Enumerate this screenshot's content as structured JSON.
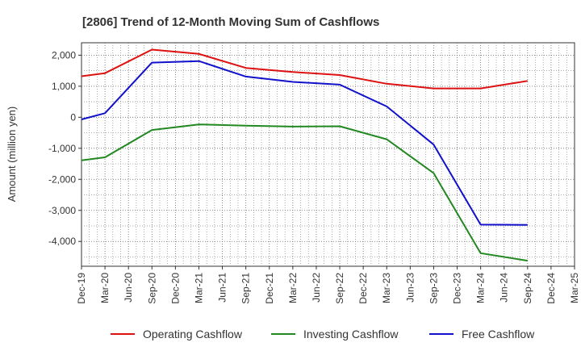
{
  "chart_data": {
    "type": "line",
    "title": "[2806]  Trend of 12-Month Moving Sum of Cashflows",
    "ylabel": "Amount (million yen)",
    "xlabel": "",
    "ylim": [
      -4800,
      2400
    ],
    "yticks": [
      2000,
      1000,
      0,
      -1000,
      -2000,
      -3000,
      -4000
    ],
    "ytick_labels": [
      "2,000",
      "1,000",
      "0",
      "-1,000",
      "-2,000",
      "-3,000",
      "-4,000"
    ],
    "categories": [
      "Dec-19",
      "Mar-20",
      "Jun-20",
      "Sep-20",
      "Dec-20",
      "Mar-21",
      "Jun-21",
      "Sep-21",
      "Dec-21",
      "Mar-22",
      "Jun-22",
      "Sep-22",
      "Dec-22",
      "Mar-23",
      "Jun-23",
      "Sep-23",
      "Dec-23",
      "Mar-24",
      "Jun-24",
      "Sep-24",
      "Dec-24",
      "Mar-25"
    ],
    "grid": true,
    "legend_position": "bottom",
    "series": [
      {
        "name": "Operating Cashflow",
        "color": "#dd1111",
        "x": [
          "Dec-19",
          "Mar-20",
          "Sep-20",
          "Mar-21",
          "Sep-21",
          "Mar-22",
          "Sep-22",
          "Mar-23",
          "Sep-23",
          "Mar-24",
          "Sep-24"
        ],
        "values": [
          1320,
          1420,
          2180,
          2040,
          1590,
          1460,
          1360,
          1080,
          930,
          930,
          1170
        ]
      },
      {
        "name": "Investing Cashflow",
        "color": "#228822",
        "x": [
          "Dec-19",
          "Mar-20",
          "Sep-20",
          "Mar-21",
          "Sep-21",
          "Mar-22",
          "Sep-22",
          "Mar-23",
          "Sep-23",
          "Mar-24",
          "Sep-24"
        ],
        "values": [
          -1390,
          -1290,
          -410,
          -230,
          -270,
          -300,
          -290,
          -710,
          -1800,
          -4380,
          -4620
        ]
      },
      {
        "name": "Free Cashflow",
        "color": "#1111cc",
        "x": [
          "Dec-19",
          "Mar-20",
          "Sep-20",
          "Mar-21",
          "Sep-21",
          "Mar-22",
          "Sep-22",
          "Mar-23",
          "Sep-23",
          "Mar-24",
          "Sep-24"
        ],
        "values": [
          -70,
          130,
          1760,
          1810,
          1310,
          1140,
          1050,
          350,
          -880,
          -3460,
          -3470
        ]
      }
    ]
  }
}
